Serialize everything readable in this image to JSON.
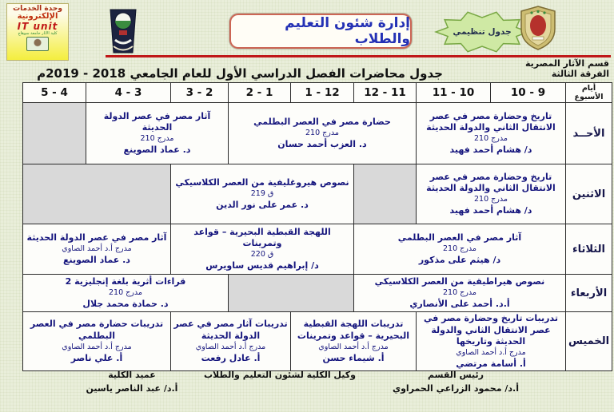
{
  "colors": {
    "page_bg": "#e9eeda",
    "red_line": "#c01818",
    "navy_text": "#15157d",
    "empty_cell": "#d9d9d9",
    "badge_green": "#cfe9a4",
    "logo_yellow": "#f4ee3e"
  },
  "header": {
    "it_unit_logo": {
      "line1": "وحدة الخدمات",
      "line2": "الإلكترونية",
      "line3": "IT unit",
      "line4": "كلية الآثار جامعة سوهاج"
    },
    "department_box": "إدارة شئون التعليم والطلاب",
    "badge": "جدول تنظيمي",
    "section_line1": "قسم الآثار المصرية",
    "section_line2": "الفرقة الثالثة",
    "title": "جدول محاضرات الفصل الدراسي الأول للعام الجامعي 2018 - 2019م"
  },
  "table": {
    "days_header": "أيام الأسبوع",
    "time_slots": [
      "9 - 10",
      "10 - 11",
      "11 - 12",
      "12 - 1",
      "1 - 2",
      "2 - 3",
      "3 - 4",
      "4 - 5"
    ],
    "rows": [
      {
        "day": "الأحــد",
        "cells": [
          {
            "span": 2,
            "title": "تاريخ وحضارة مصر في عصر الانتقال الثاني والدولة الحديثة",
            "room": "مدرج 210",
            "lecturer": "د/ هشام أحمد فهيد"
          },
          {
            "span": 3,
            "title": "حضارة مصر في العصر البطلمي",
            "room": "مدرج 210",
            "lecturer": "د. العزب أحمد حسان"
          },
          {
            "span": 2,
            "title": "آثار مصر في عصر الدولة الحديثة",
            "room": "مدرج 210",
            "lecturer": "د. عماد الصوينع"
          },
          {
            "span": 1,
            "empty": true
          }
        ]
      },
      {
        "day": "الاثنين",
        "cells": [
          {
            "span": 2,
            "title": "تاريخ وحضارة مصر في عصر الانتقال الثاني والدولة الحديثة",
            "room": "مدرج 210",
            "lecturer": "د/ هشام أحمد فهيد"
          },
          {
            "span": 1,
            "empty": true
          },
          {
            "span": 3,
            "title": "نصوص هيروغليفية من العصر الكلاسيكي",
            "room": "ق 219",
            "lecturer": "د. عمر على نور الدين"
          },
          {
            "span": 2,
            "empty": true
          }
        ]
      },
      {
        "day": "الثلاثاء",
        "cells": [
          {
            "span": 3,
            "title": "آثار مصر في العصر البطلمي",
            "room": "مدرج 210",
            "lecturer": "د/ هيثم على مذكور"
          },
          {
            "span": 3,
            "title": "اللهجة القبطية البحيرية – قواعد وتمرينات",
            "room": "ق 220",
            "lecturer": "د/ إبراهيم قديس ساويرس"
          },
          {
            "span": 2,
            "title": "آثار مصر في عصر الدولة الحديثة",
            "room": "مدرج أ.د أحمد الصاوي",
            "lecturer": "د. عماد الصوينع"
          }
        ]
      },
      {
        "day": "الأربعاء",
        "cells": [
          {
            "span": 3,
            "title": "نصوص هيراطيقية من العصر الكلاسيكي",
            "room": "مدرج 210",
            "lecturer": "أ.د. أحمد على الأنصاري"
          },
          {
            "span": 2,
            "empty": true
          },
          {
            "span": 3,
            "title": "قراءات أثرية بلغة إنجليزية 2",
            "room": "مدرج 210",
            "lecturer": "د. حمادة محمد جلال"
          }
        ]
      },
      {
        "day": "الخميس",
        "cells": [
          {
            "span": 2,
            "title": "تدريبات تاريخ وحضارة مصر في عصر الانتقال الثاني والدولة الحديثة وتاريخها",
            "room": "مدرج أ.د أحمد الصاوي",
            "lecturer": "أ. أسامة مرتضي"
          },
          {
            "span": 2,
            "title": "تدريبات اللهجة القبطية البحيرية – قواعد وتمرينات",
            "room": "مدرج أ.د أحمد الصاوي",
            "lecturer": "أ. شيماء حسن"
          },
          {
            "span": 2,
            "title": "تدريبات آثار مصر في عصر الدولة الحديثة",
            "room": "مدرج أ.د أحمد الصاوي",
            "lecturer": "أ. عادل رفعت"
          },
          {
            "span": 2,
            "title": "تدريبات حضارة مصر في العصر البطلمي",
            "room": "مدرج أ.د أحمد الصاوي",
            "lecturer": "أ. علي ناصر"
          }
        ]
      }
    ]
  },
  "footer": {
    "signatures": [
      {
        "title": "رئيس القسم",
        "name": "أ.د/ محمود الزراعي الحمراوي"
      },
      {
        "title": "وكيل الكلية لشئون التعليم والطلاب",
        "name": ""
      },
      {
        "title": "عميد الكلية",
        "name": "أ.د/ عبد الناصر ياسين"
      }
    ]
  }
}
